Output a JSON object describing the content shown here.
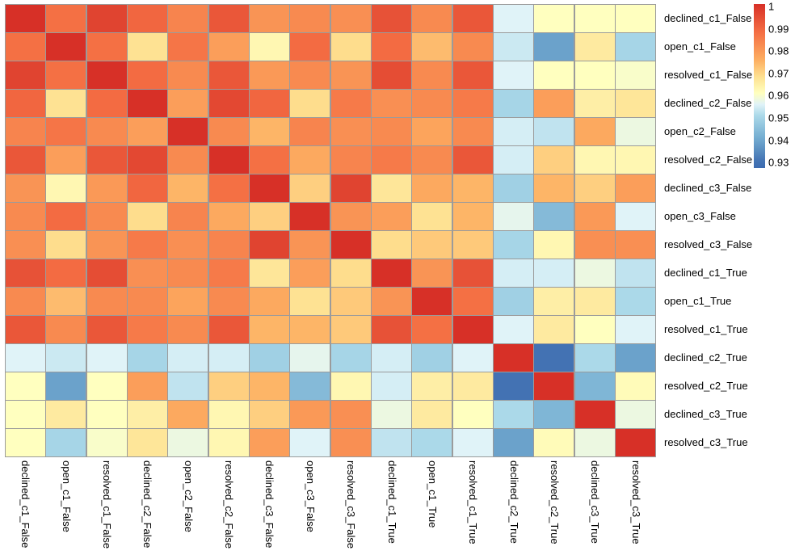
{
  "chart_data": {
    "type": "heatmap",
    "title": "",
    "xlabel": "",
    "ylabel": "",
    "grid_line_color": "#9b9b9b",
    "background": "#ffffff",
    "x_labels": [
      "declined_c1_False",
      "open_c1_False",
      "resolved_c1_False",
      "declined_c2_False",
      "open_c2_False",
      "resolved_c2_False",
      "declined_c3_False",
      "open_c3_False",
      "resolved_c3_False",
      "declined_c1_True",
      "open_c1_True",
      "resolved_c1_True",
      "declined_c2_True",
      "resolved_c2_True",
      "declined_c3_True",
      "resolved_c3_True"
    ],
    "y_labels": [
      "declined_c1_False",
      "open_c1_False",
      "resolved_c1_False",
      "declined_c2_False",
      "open_c2_False",
      "resolved_c2_False",
      "declined_c3_False",
      "open_c3_False",
      "resolved_c3_False",
      "declined_c1_True",
      "open_c1_True",
      "resolved_c1_True",
      "declined_c2_True",
      "resolved_c2_True",
      "declined_c3_True",
      "resolved_c3_True"
    ],
    "values": [
      [
        1.0,
        0.987,
        0.996,
        0.989,
        0.983,
        0.992,
        0.98,
        0.982,
        0.981,
        0.993,
        0.982,
        0.992,
        0.955,
        0.96,
        0.96,
        0.96
      ],
      [
        0.987,
        1.0,
        0.987,
        0.967,
        0.986,
        0.978,
        0.962,
        0.988,
        0.968,
        0.988,
        0.973,
        0.982,
        0.953,
        0.938,
        0.965,
        0.949
      ],
      [
        0.996,
        0.987,
        1.0,
        0.988,
        0.982,
        0.992,
        0.979,
        0.982,
        0.98,
        0.994,
        0.982,
        0.992,
        0.955,
        0.96,
        0.96,
        0.959
      ],
      [
        0.989,
        0.967,
        0.988,
        1.0,
        0.978,
        0.995,
        0.989,
        0.968,
        0.985,
        0.981,
        0.982,
        0.985,
        0.949,
        0.978,
        0.964,
        0.966
      ],
      [
        0.983,
        0.986,
        0.982,
        0.978,
        1.0,
        0.982,
        0.974,
        0.983,
        0.981,
        0.982,
        0.977,
        0.982,
        0.954,
        0.952,
        0.976,
        0.957
      ],
      [
        0.992,
        0.978,
        0.992,
        0.995,
        0.982,
        1.0,
        0.987,
        0.976,
        0.983,
        0.985,
        0.982,
        0.992,
        0.954,
        0.97,
        0.962,
        0.962
      ],
      [
        0.98,
        0.962,
        0.979,
        0.989,
        0.974,
        0.987,
        1.0,
        0.97,
        0.996,
        0.966,
        0.976,
        0.974,
        0.948,
        0.974,
        0.97,
        0.978
      ],
      [
        0.982,
        0.988,
        0.982,
        0.968,
        0.983,
        0.976,
        0.97,
        1.0,
        0.98,
        0.978,
        0.967,
        0.974,
        0.956,
        0.943,
        0.979,
        0.955
      ],
      [
        0.981,
        0.968,
        0.98,
        0.985,
        0.981,
        0.983,
        0.996,
        0.98,
        1.0,
        0.968,
        0.971,
        0.971,
        0.949,
        0.962,
        0.981,
        0.981
      ],
      [
        0.993,
        0.988,
        0.994,
        0.981,
        0.982,
        0.985,
        0.966,
        0.978,
        0.968,
        1.0,
        0.98,
        0.993,
        0.954,
        0.954,
        0.957,
        0.952
      ],
      [
        0.982,
        0.973,
        0.982,
        0.982,
        0.977,
        0.982,
        0.976,
        0.967,
        0.971,
        0.98,
        1.0,
        0.987,
        0.948,
        0.964,
        0.965,
        0.95
      ],
      [
        0.992,
        0.982,
        0.992,
        0.985,
        0.982,
        0.992,
        0.974,
        0.974,
        0.971,
        0.993,
        0.987,
        1.0,
        0.955,
        0.965,
        0.96,
        0.955
      ],
      [
        0.955,
        0.953,
        0.955,
        0.949,
        0.954,
        0.954,
        0.948,
        0.956,
        0.949,
        0.954,
        0.948,
        0.955,
        1.0,
        0.929,
        0.95,
        0.938
      ],
      [
        0.96,
        0.938,
        0.96,
        0.978,
        0.952,
        0.97,
        0.974,
        0.943,
        0.962,
        0.954,
        0.964,
        0.965,
        0.929,
        1.0,
        0.942,
        0.961
      ],
      [
        0.96,
        0.965,
        0.96,
        0.964,
        0.976,
        0.962,
        0.97,
        0.979,
        0.981,
        0.957,
        0.965,
        0.96,
        0.95,
        0.942,
        1.0,
        0.957
      ],
      [
        0.96,
        0.949,
        0.959,
        0.966,
        0.957,
        0.962,
        0.978,
        0.955,
        0.981,
        0.952,
        0.95,
        0.955,
        0.938,
        0.961,
        0.957,
        1.0
      ]
    ],
    "colormap": {
      "name": "RdYlBu_r",
      "stops": [
        [
          0.9265,
          "#3d6cb1"
        ],
        [
          0.93,
          "#4575b4"
        ],
        [
          0.94,
          "#74add1"
        ],
        [
          0.95,
          "#abd9e9"
        ],
        [
          0.955,
          "#e0f3f8"
        ],
        [
          0.96,
          "#ffffbf"
        ],
        [
          0.9675,
          "#fee090"
        ],
        [
          0.975,
          "#fdae61"
        ],
        [
          0.9875,
          "#f46d43"
        ],
        [
          1.0,
          "#d73027"
        ]
      ]
    },
    "colorbar": {
      "position": "top-right",
      "display_min": 0.9265,
      "display_max": 1.0,
      "tick_labels": [
        "1",
        "0.99",
        "0.98",
        "0.97",
        "0.96",
        "0.95",
        "0.94",
        "0.93"
      ],
      "tick_values": [
        1.0,
        0.99,
        0.98,
        0.97,
        0.96,
        0.95,
        0.94,
        0.93
      ]
    }
  }
}
